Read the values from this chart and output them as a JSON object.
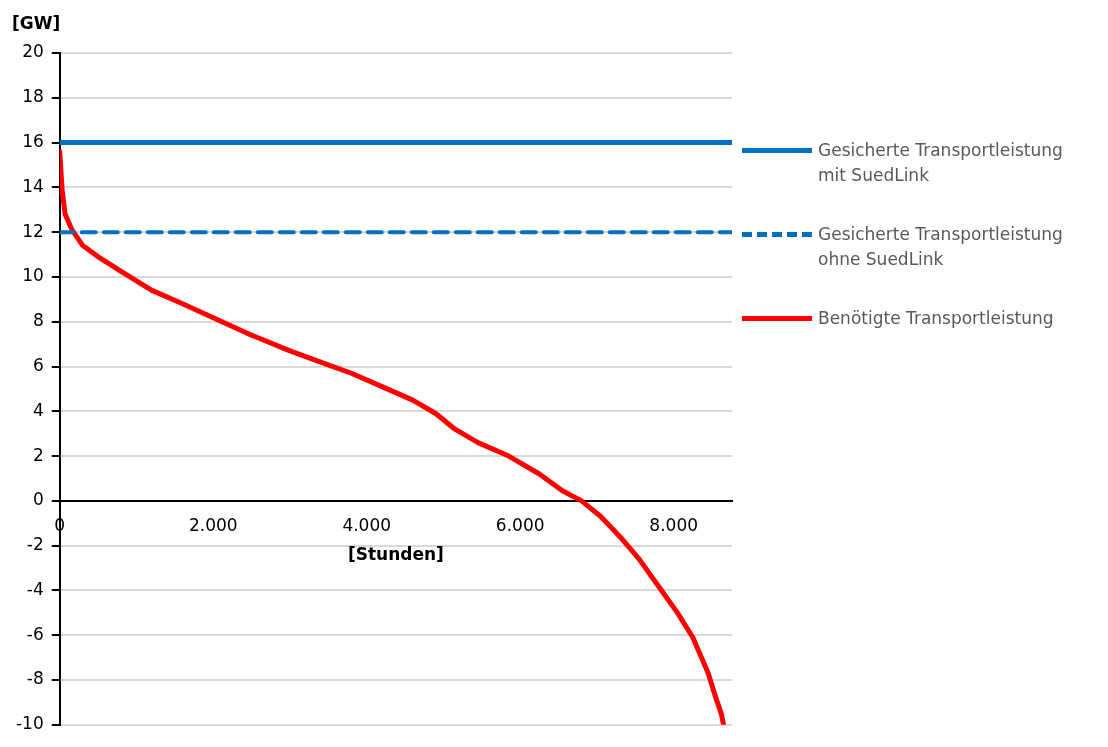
{
  "chart_data": {
    "type": "line",
    "ylabel": "[GW]",
    "xlabel": "[Stunden]",
    "xlim": [
      0,
      8760
    ],
    "xticks": [
      0,
      {
        "value": 2000,
        "label": "2.000"
      },
      {
        "value": 4000,
        "label": "4.000"
      },
      {
        "value": 6000,
        "label": "6.000"
      },
      {
        "value": 8000,
        "label": "8.000"
      }
    ],
    "ylim": [
      -10,
      20
    ],
    "yticks": [
      -10,
      -8,
      -6,
      -4,
      -2,
      0,
      2,
      4,
      6,
      8,
      10,
      12,
      14,
      16,
      18,
      20
    ],
    "grid": "y",
    "legend": "right",
    "marker": "none",
    "series": [
      {
        "name": "Gesicherte Transportleistung mit SuedLink",
        "color": "#0070c0",
        "line_style": "solid",
        "x": [
          0,
          8760
        ],
        "values": [
          16,
          16
        ]
      },
      {
        "name": "Gesicherte Transportleistung ohne SuedLink",
        "color": "#0070c0",
        "line_style": "dashed",
        "x": [
          0,
          8760
        ],
        "values": [
          12,
          12
        ]
      },
      {
        "name": "Benötigte Transportleistung",
        "color": "#ff0000",
        "line_style": "solid",
        "x": [
          0,
          30,
          70,
          160,
          300,
          500,
          820,
          1200,
          1600,
          2050,
          2500,
          3000,
          3400,
          3800,
          4200,
          4600,
          4900,
          5150,
          5450,
          5850,
          6250,
          6550,
          6800,
          7050,
          7300,
          7550,
          7800,
          8050,
          8250,
          8450,
          8550,
          8620,
          8650
        ],
        "values": [
          15.6,
          13.9,
          12.8,
          12.1,
          11.4,
          10.9,
          10.2,
          9.4,
          8.8,
          8.1,
          7.4,
          6.7,
          6.2,
          5.7,
          5.1,
          4.5,
          3.9,
          3.2,
          2.6,
          2,
          1.2,
          0.45,
          0,
          -0.7,
          -1.6,
          -2.6,
          -3.8,
          -5,
          -6.1,
          -7.7,
          -8.8,
          -9.5,
          -10
        ]
      }
    ]
  }
}
